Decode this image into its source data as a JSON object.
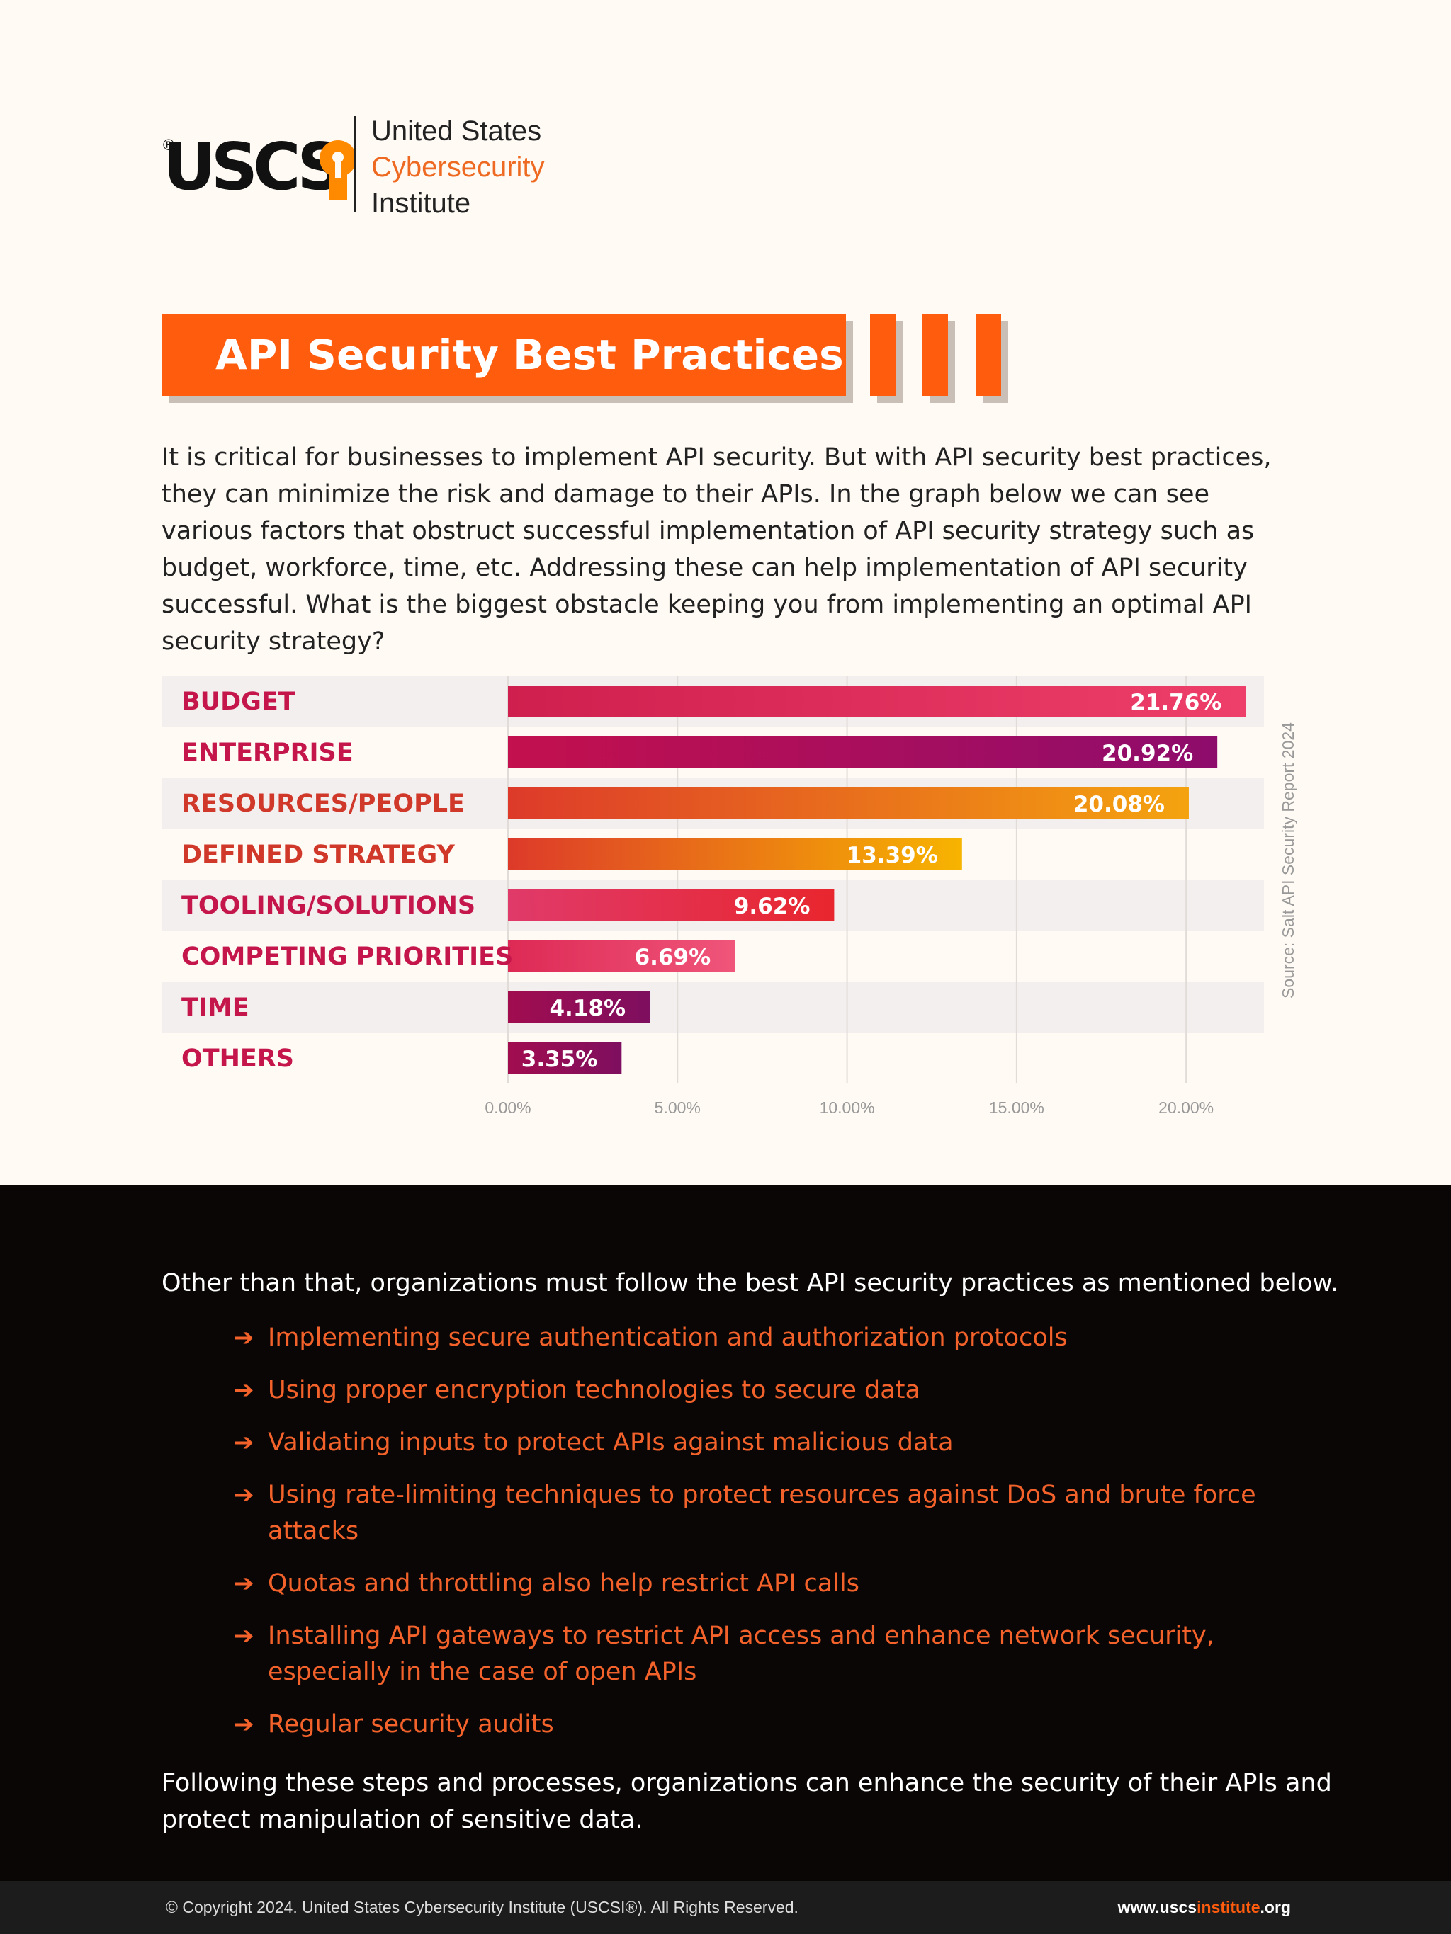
{
  "logo": {
    "mark": "USCS",
    "registered": "®",
    "line1": "United States",
    "line2": "Cybersecurity",
    "line3": "Institute"
  },
  "title": "API Security Best Practices",
  "intro": "It is critical for businesses to implement API security. But with API security best practices, they can minimize the risk and damage to their APIs. In the graph below we can see various factors that obstruct successful implementation of API security strategy such as budget, workforce, time, etc. Addressing these can help implementation of API security successful. What is the biggest obstacle keeping you from implementing an optimal API security strategy?",
  "chart_data": {
    "type": "bar",
    "orientation": "horizontal",
    "categories": [
      "BUDGET",
      "ENTERPRISE",
      "RESOURCES/PEOPLE",
      "DEFINED STRATEGY",
      "TOOLING/SOLUTIONS",
      "COMPETING PRIORITIES",
      "TIME",
      "OTHERS"
    ],
    "values": [
      21.76,
      20.92,
      20.08,
      13.39,
      9.62,
      6.69,
      4.18,
      3.35
    ],
    "value_labels": [
      "21.76%",
      "20.92%",
      "20.08%",
      "13.39%",
      "9.62%",
      "6.69%",
      "4.18%",
      "3.35%"
    ],
    "xlim": [
      0,
      21
    ],
    "xticks": [
      0,
      5,
      10,
      15,
      20
    ],
    "xtick_labels": [
      "0.00%",
      "5.00%",
      "10.00%",
      "15.00%",
      "20.00%"
    ],
    "grid": true,
    "source": "Source: Salt API Security Report 2024",
    "colors": [
      [
        "#cf1f4e",
        "#ee3f6a"
      ],
      [
        "#c3104e",
        "#8e0c6c"
      ],
      [
        "#dd3a2a",
        "#f4a30f"
      ],
      [
        "#dd3a2a",
        "#f7b400"
      ],
      [
        "#e03a6a",
        "#e8262e"
      ],
      [
        "#dd2a55",
        "#f0557a"
      ],
      [
        "#a10d4f",
        "#7e0e5f"
      ],
      [
        "#a10d4f",
        "#7e0e5f"
      ]
    ],
    "label_colors": [
      "#c4164b",
      "#c4164b",
      "#d0382a",
      "#d0382a",
      "#c4164b",
      "#c4164b",
      "#c4164b",
      "#c4164b"
    ]
  },
  "dark_intro": "Other than that, organizations must follow the best API security practices as mentioned below.",
  "bullets": [
    "Implementing secure authentication and authorization protocols",
    "Using proper encryption technologies to secure data",
    "Validating inputs to protect APIs against malicious data",
    "Using rate-limiting techniques to protect resources against DoS and brute force attacks",
    "Quotas and throttling also help restrict API calls",
    "Installing API gateways to restrict API access and enhance network security, especially in the case of open APIs",
    "Regular security audits"
  ],
  "outro": "Following these steps and processes, organizations can enhance the security of their APIs and protect manipulation of sensitive data.",
  "footer": {
    "copyright": "© Copyright 2024. United States Cybersecurity Institute (USCSI®). All Rights Reserved.",
    "url_prefix": "www.uscs",
    "url_highlight": "institute",
    "url_suffix": ".org"
  }
}
